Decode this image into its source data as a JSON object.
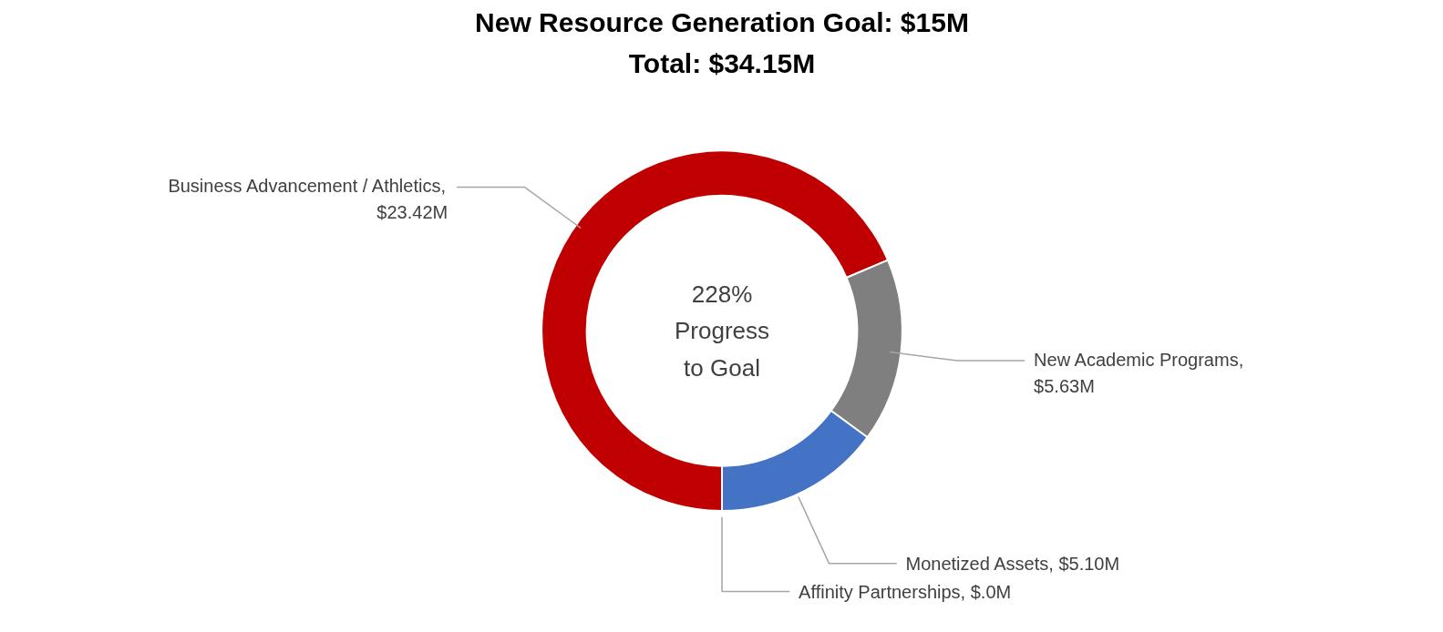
{
  "chart_data": {
    "type": "donut",
    "title": "New Resource Generation Goal: $15M",
    "subtitle": "Total: $34.15M",
    "categories": [
      "Business Advancement / Athletics",
      "New Academic Programs",
      "Monetized Assets",
      "Affinity Partnerships"
    ],
    "values": [
      23.42,
      5.63,
      5.1,
      0.0
    ],
    "colors": [
      "#c00000",
      "#7f7f7f",
      "#4472c4",
      "#ffc000"
    ],
    "value_labels": [
      ", $23.42M",
      ", $5.63M",
      ", $5.10M",
      ", $.0M"
    ],
    "annotations": [
      "228%\nProgress\nto Goal"
    ],
    "legend": false
  }
}
